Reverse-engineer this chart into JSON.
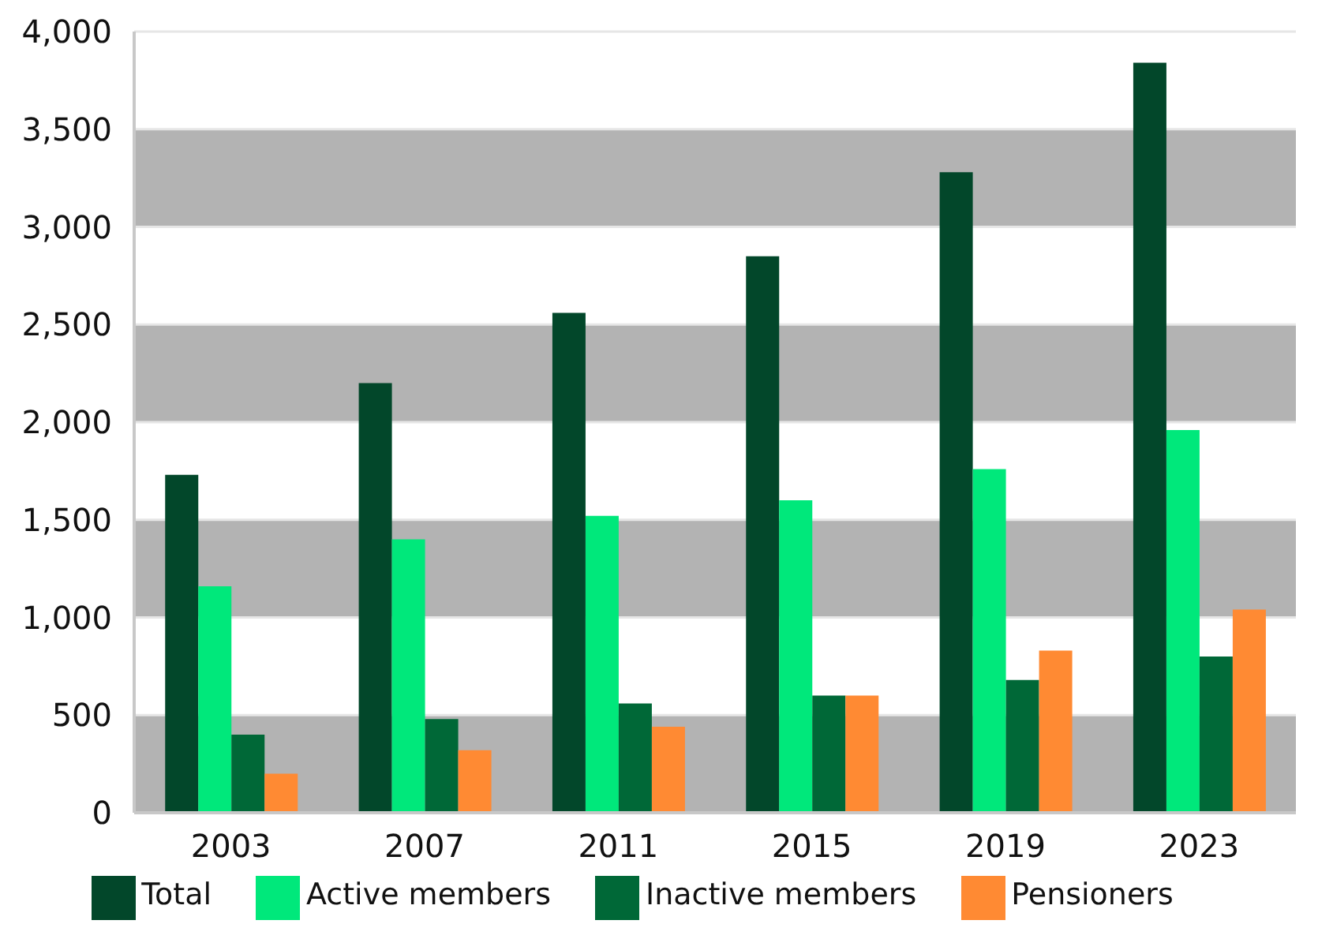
{
  "chart_data": {
    "type": "bar",
    "categories": [
      "2003",
      "2007",
      "2011",
      "2015",
      "2019",
      "2023"
    ],
    "series": [
      {
        "name": "Total",
        "color": "#02472a",
        "values": [
          1730,
          2200,
          2560,
          2850,
          3280,
          3840
        ]
      },
      {
        "name": "Active members",
        "color": "#00e87b",
        "values": [
          1160,
          1400,
          1520,
          1600,
          1760,
          1960
        ]
      },
      {
        "name": "Inactive members",
        "color": "#006837",
        "values": [
          400,
          480,
          560,
          600,
          680,
          800
        ]
      },
      {
        "name": "Pensioners",
        "color": "#ff8a33",
        "values": [
          200,
          320,
          440,
          600,
          830,
          1040
        ]
      }
    ],
    "ylim": [
      0,
      4000
    ],
    "yticks": [
      {
        "value": 0,
        "label": "0"
      },
      {
        "value": 500,
        "label": "500"
      },
      {
        "value": 1000,
        "label": "1,000"
      },
      {
        "value": 1500,
        "label": "1,500"
      },
      {
        "value": 2000,
        "label": "2,000"
      },
      {
        "value": 2500,
        "label": "2,500"
      },
      {
        "value": 3000,
        "label": "3,000"
      },
      {
        "value": 3500,
        "label": "3,500"
      },
      {
        "value": 4000,
        "label": "4,000"
      }
    ],
    "grid": "y",
    "legend": "bottom"
  }
}
